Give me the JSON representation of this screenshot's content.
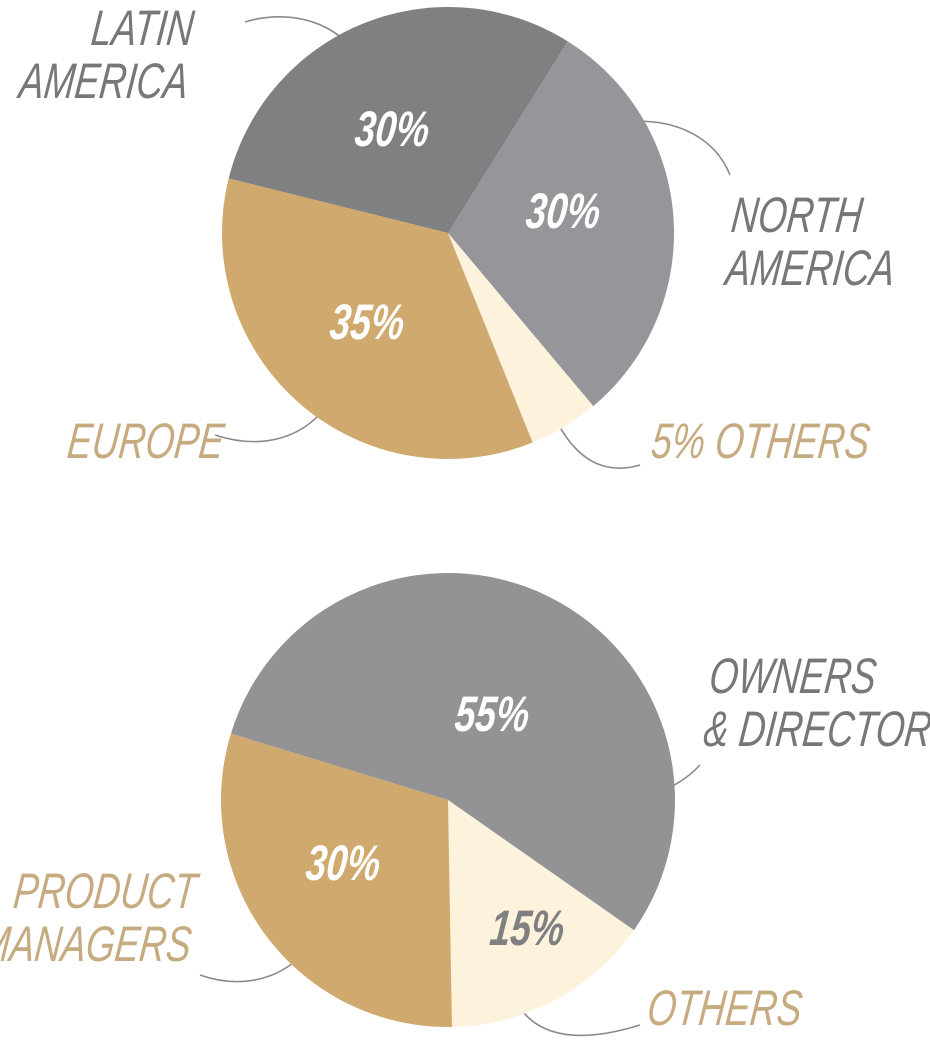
{
  "chart_data": [
    {
      "type": "pie",
      "categories": [
        "NORTH\nAMERICA",
        "OTHERS",
        "EUROPE",
        "LATIN\nAMERICA"
      ],
      "values": [
        30,
        5,
        35,
        30
      ],
      "value_labels": [
        "30%",
        "5%",
        "35%",
        "30%"
      ],
      "colors": [
        "#96969a",
        "#fdf3dd",
        "#cfa96e",
        "#808083"
      ]
    },
    {
      "type": "pie",
      "categories": [
        "OWNERS\n& DIRECTORS",
        "OTHERS",
        "PRODUCT\nMANAGERS"
      ],
      "values": [
        55,
        15,
        30
      ],
      "value_labels": [
        "55%",
        "15%",
        "30%"
      ],
      "colors": [
        "#939396",
        "#fdf3dd",
        "#cfa96e"
      ]
    }
  ]
}
